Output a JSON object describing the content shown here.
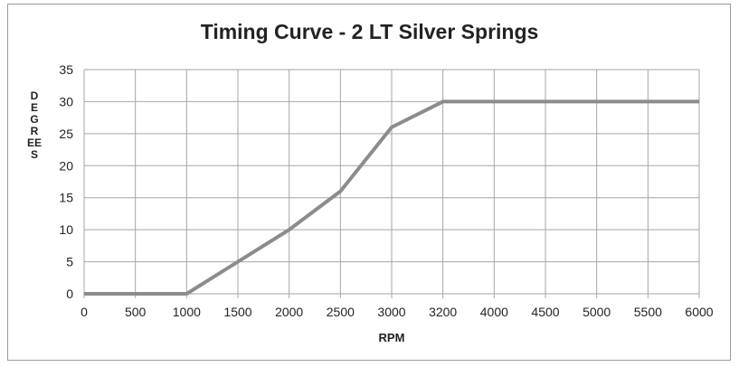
{
  "chart_data": {
    "type": "line",
    "title": "Timing Curve - 2 LT Silver Springs",
    "xlabel": "RPM",
    "ylabel": "DEGREES",
    "categories": [
      "0",
      "500",
      "1000",
      "1500",
      "2000",
      "2500",
      "3000",
      "3200",
      "4000",
      "4500",
      "5000",
      "5500",
      "6000"
    ],
    "series": [
      {
        "values": [
          0,
          0,
          0,
          5,
          10,
          16,
          26,
          30,
          30,
          30,
          30,
          30,
          30
        ]
      }
    ],
    "ylim": [
      0,
      35
    ],
    "yticks": [
      0,
      5,
      10,
      15,
      20,
      25,
      30,
      35
    ],
    "grid": true,
    "legend": "none",
    "line_color": "#8c8c8c",
    "grid_color": "#a6a6a6"
  }
}
